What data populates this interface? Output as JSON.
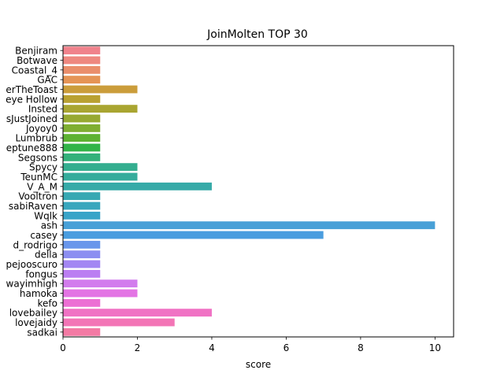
{
  "chart_data": {
    "type": "bar",
    "orientation": "horizontal",
    "title": "JoinMolten TOP 30",
    "xlabel": "score",
    "ylabel": "",
    "xlim": [
      0,
      10.5
    ],
    "xticks": [
      0,
      2,
      4,
      6,
      8,
      10
    ],
    "grid": false,
    "categories": [
      "Benjiram",
      "Botwave",
      "Coastal_4",
      "GAC",
      "erTheToast",
      "eye Hollow",
      "Insted",
      "sJustJoined",
      "Joyoy0",
      "Lumbrub",
      "eptune888",
      "Segsons",
      "Spycy",
      "TeunMC",
      "V_A_M",
      "Vooltron",
      "sabiRaven",
      "Wqlk",
      "ash",
      "casey",
      "d_rodrigo",
      "della",
      "pejooscuro",
      "fongus",
      "wayimhigh",
      "hamoka",
      "kefo",
      "lovebailey",
      "lovejaidy",
      "sadkai"
    ],
    "values": [
      1,
      1,
      1,
      1,
      2,
      1,
      2,
      1,
      1,
      1,
      1,
      1,
      2,
      2,
      4,
      1,
      1,
      1,
      10,
      7,
      1,
      1,
      1,
      1,
      2,
      2,
      1,
      4,
      3,
      1
    ],
    "colors": [
      "#f0828c",
      "#ee8880",
      "#ea8e6b",
      "#e59455",
      "#cb9d3b",
      "#b9a131",
      "#a9a531",
      "#97a931",
      "#7fae31",
      "#5db231",
      "#31b448",
      "#33b17a",
      "#34ae8f",
      "#35ac9c",
      "#36aaa8",
      "#37a8b3",
      "#38a6bd",
      "#39a4c8",
      "#48a0d7",
      "#4a9ddf",
      "#6996eb",
      "#8c8ef1",
      "#a386f3",
      "#bb7ef2",
      "#d27ced",
      "#e374e4",
      "#ec6fd4",
      "#f072c4",
      "#f375b6",
      "#f37aa4"
    ]
  }
}
